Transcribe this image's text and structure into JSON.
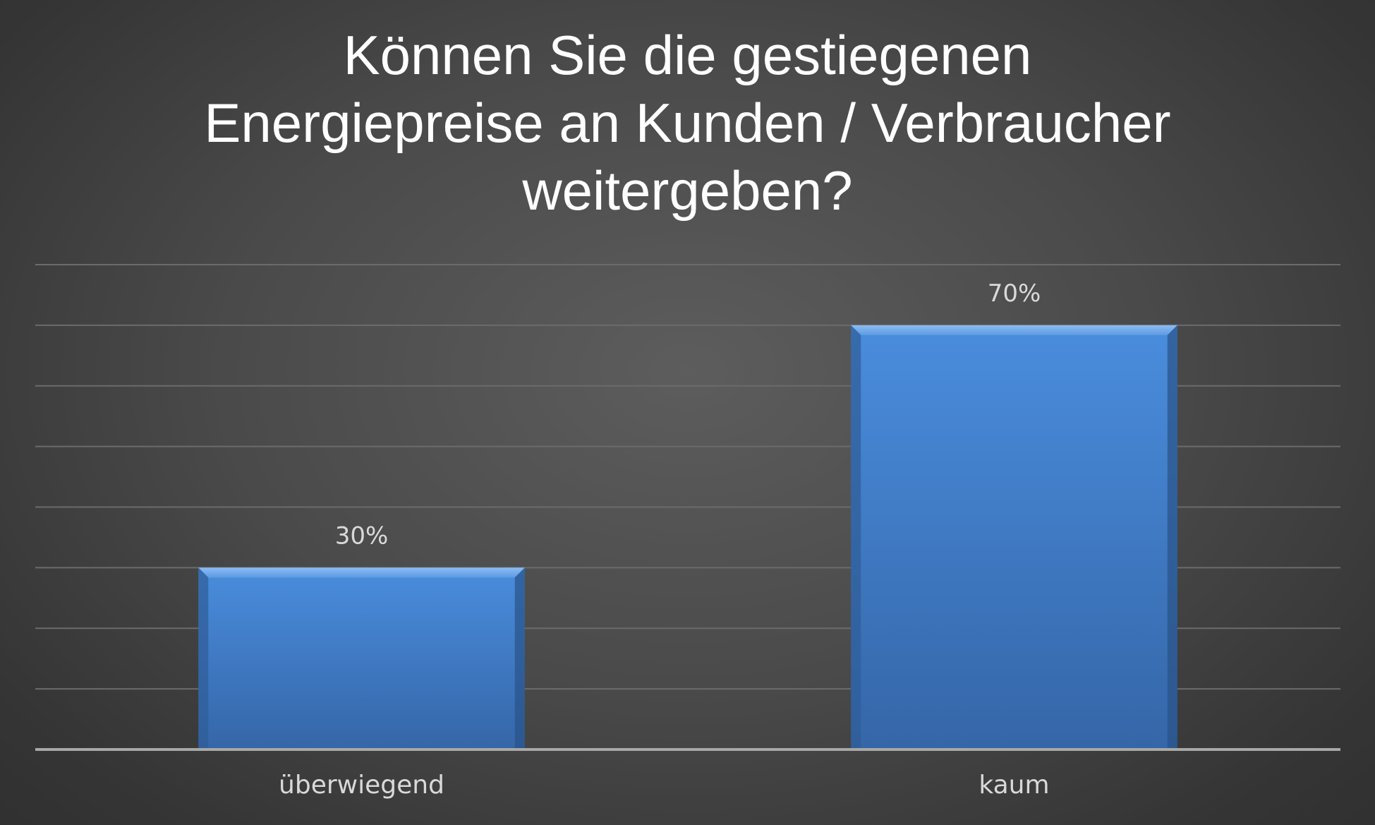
{
  "chart_data": {
    "type": "bar",
    "title_lines": [
      "Können Sie die gestiegenen",
      "Energiepreise an Kunden / Verbraucher",
      "weitergeben?"
    ],
    "categories": [
      "überwiegend",
      "kaum"
    ],
    "values": [
      30,
      70
    ],
    "data_labels": [
      "30%",
      "70%"
    ],
    "unit": "%",
    "ylim": [
      0,
      80
    ],
    "gridline_step": 10,
    "grid": true,
    "y_axis_labels_shown": false,
    "legend": "none",
    "colors": {
      "bar": "#3f7fcf",
      "bar_top": "#6fa8ec",
      "bar_bottom": "#3566a8",
      "gridline": "#6b6b6b",
      "baseline": "#a8a8a8",
      "text": "#d9d9d9",
      "title": "#ffffff"
    }
  }
}
